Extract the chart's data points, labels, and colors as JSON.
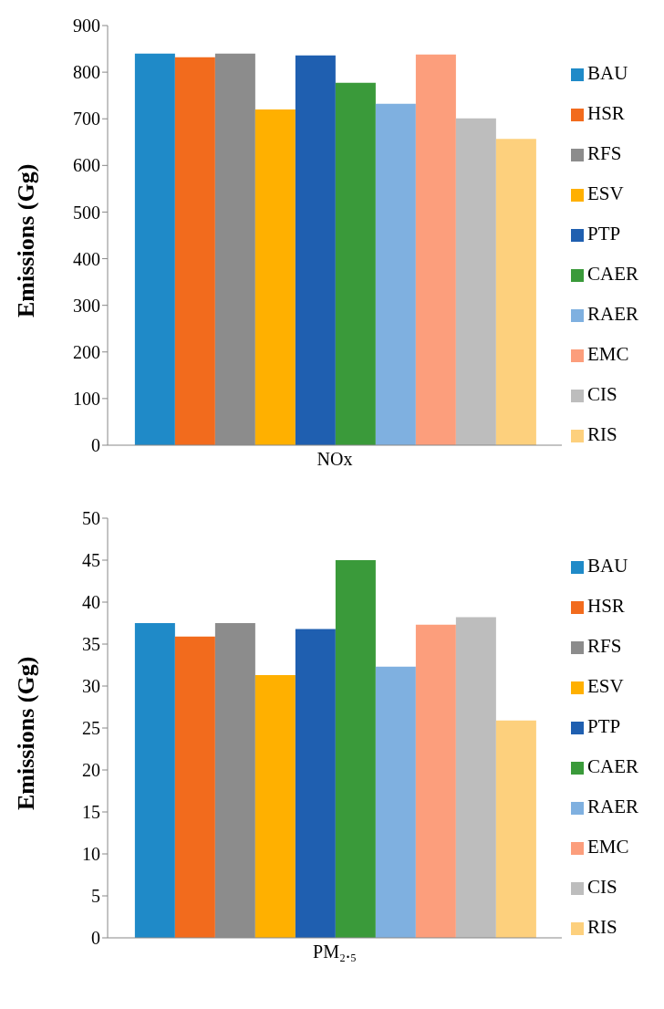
{
  "chart_data": [
    {
      "type": "bar",
      "categories": [
        "NOx"
      ],
      "ylabel": "Emissions (Gg)",
      "ylim": [
        0,
        900
      ],
      "yticks": [
        0,
        100,
        200,
        300,
        400,
        500,
        600,
        700,
        800,
        900
      ],
      "grid": false,
      "legend": "right",
      "series": [
        {
          "name": "BAU",
          "color": "#1f8ac8",
          "values": [
            840
          ]
        },
        {
          "name": "HSR",
          "color": "#f26b1d",
          "values": [
            832
          ]
        },
        {
          "name": "RFS",
          "color": "#8c8c8c",
          "values": [
            840
          ]
        },
        {
          "name": "ESV",
          "color": "#ffb000",
          "values": [
            720
          ]
        },
        {
          "name": "PTP",
          "color": "#1f5fb0",
          "values": [
            836
          ]
        },
        {
          "name": "CAER",
          "color": "#3a9a3a",
          "values": [
            777
          ]
        },
        {
          "name": "RAER",
          "color": "#7fb0e0",
          "values": [
            732
          ]
        },
        {
          "name": "EMC",
          "color": "#fc9e7c",
          "values": [
            838
          ]
        },
        {
          "name": "CIS",
          "color": "#bdbdbd",
          "values": [
            701
          ]
        },
        {
          "name": "RIS",
          "color": "#fdd07d",
          "values": [
            657
          ]
        }
      ]
    },
    {
      "type": "bar",
      "categories": [
        "PM₂.₅"
      ],
      "ylabel": "Emissions (Gg)",
      "ylim": [
        0,
        50
      ],
      "yticks": [
        0,
        5,
        10,
        15,
        20,
        25,
        30,
        35,
        40,
        45,
        50
      ],
      "grid": false,
      "legend": "right",
      "series": [
        {
          "name": "BAU",
          "color": "#1f8ac8",
          "values": [
            37.5
          ]
        },
        {
          "name": "HSR",
          "color": "#f26b1d",
          "values": [
            35.9
          ]
        },
        {
          "name": "RFS",
          "color": "#8c8c8c",
          "values": [
            37.5
          ]
        },
        {
          "name": "ESV",
          "color": "#ffb000",
          "values": [
            31.3
          ]
        },
        {
          "name": "PTP",
          "color": "#1f5fb0",
          "values": [
            36.8
          ]
        },
        {
          "name": "CAER",
          "color": "#3a9a3a",
          "values": [
            45.0
          ]
        },
        {
          "name": "RAER",
          "color": "#7fb0e0",
          "values": [
            32.3
          ]
        },
        {
          "name": "EMC",
          "color": "#fc9e7c",
          "values": [
            37.3
          ]
        },
        {
          "name": "CIS",
          "color": "#bdbdbd",
          "values": [
            38.2
          ]
        },
        {
          "name": "RIS",
          "color": "#fdd07d",
          "values": [
            25.9
          ]
        }
      ]
    }
  ]
}
